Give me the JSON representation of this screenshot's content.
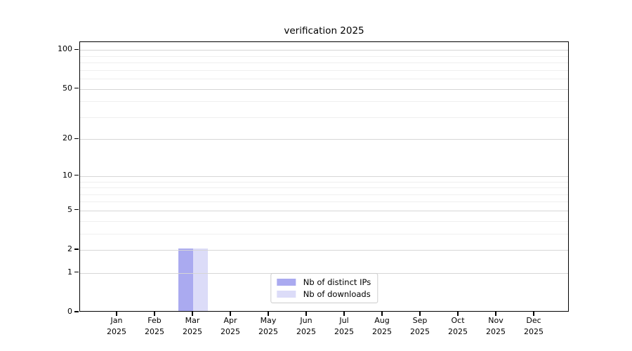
{
  "chart_data": {
    "type": "bar",
    "title": "verification 2025",
    "categories": [
      "Jan",
      "Feb",
      "Mar",
      "Apr",
      "May",
      "Jun",
      "Jul",
      "Aug",
      "Sep",
      "Oct",
      "Nov",
      "Dec"
    ],
    "category_year": "2025",
    "series": [
      {
        "name": "Nb of distinct IPs",
        "color": "#aaaaf0",
        "values": [
          0,
          0,
          2,
          0,
          0,
          0,
          0,
          0,
          0,
          0,
          0,
          0
        ]
      },
      {
        "name": "Nb of downloads",
        "color": "#dcdcf8",
        "values": [
          0,
          0,
          2,
          0,
          0,
          0,
          0,
          0,
          0,
          0,
          0,
          0
        ]
      }
    ],
    "xlabel": "",
    "ylabel": "",
    "y_scale": "log1p",
    "y_ticks": [
      0,
      1,
      2,
      5,
      10,
      20,
      50,
      100
    ],
    "y_minor_ticks": [
      3,
      4,
      6,
      7,
      8,
      9,
      30,
      40,
      60,
      70,
      80,
      90
    ],
    "ylim": [
      0,
      115
    ],
    "grid": "horizontal",
    "legend_position": "bottom-center-inside",
    "colors": {
      "background": "#ffffff",
      "axis": "#000000",
      "grid_major": "#d6d6d6",
      "grid_minor": "#efefef",
      "legend_border": "#cccccc",
      "text": "#000000"
    }
  }
}
